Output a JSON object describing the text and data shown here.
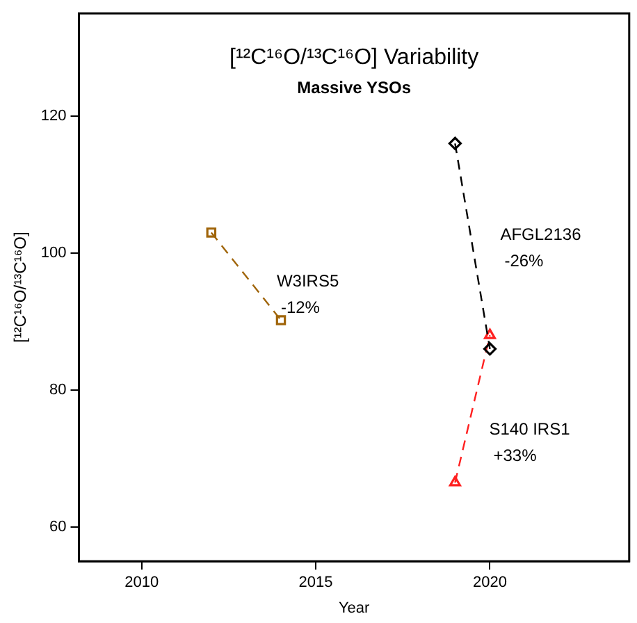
{
  "chart_data": {
    "type": "line",
    "title": "[¹²C¹⁶O/¹³C¹⁶O] Variability",
    "subtitle": "Massive YSOs",
    "xlabel": "Year",
    "ylabel": "[¹²C¹⁶O/¹³C¹⁶O]",
    "xlim": [
      2008.2,
      2024
    ],
    "xticks": [
      2010,
      2015,
      2020
    ],
    "ylim": [
      55,
      135
    ],
    "yticks": [
      60,
      80,
      100,
      120
    ],
    "grid": false,
    "legend": false,
    "line_style": "dashed",
    "series": [
      {
        "name": "W3IRS5",
        "color": "#a0650a",
        "marker": "square",
        "x": [
          2012,
          2014
        ],
        "values": [
          103,
          90.2
        ]
      },
      {
        "name": "AFGL2136",
        "color": "#000000",
        "marker": "diamond",
        "x": [
          2019,
          2020
        ],
        "values": [
          116,
          86
        ]
      },
      {
        "name": "S140 IRS1",
        "color": "#ff2020",
        "marker": "triangle",
        "x": [
          2019,
          2020
        ],
        "values": [
          66.5,
          88
        ]
      }
    ],
    "annotations": [
      "-12%",
      "-26%",
      "+33%"
    ]
  }
}
